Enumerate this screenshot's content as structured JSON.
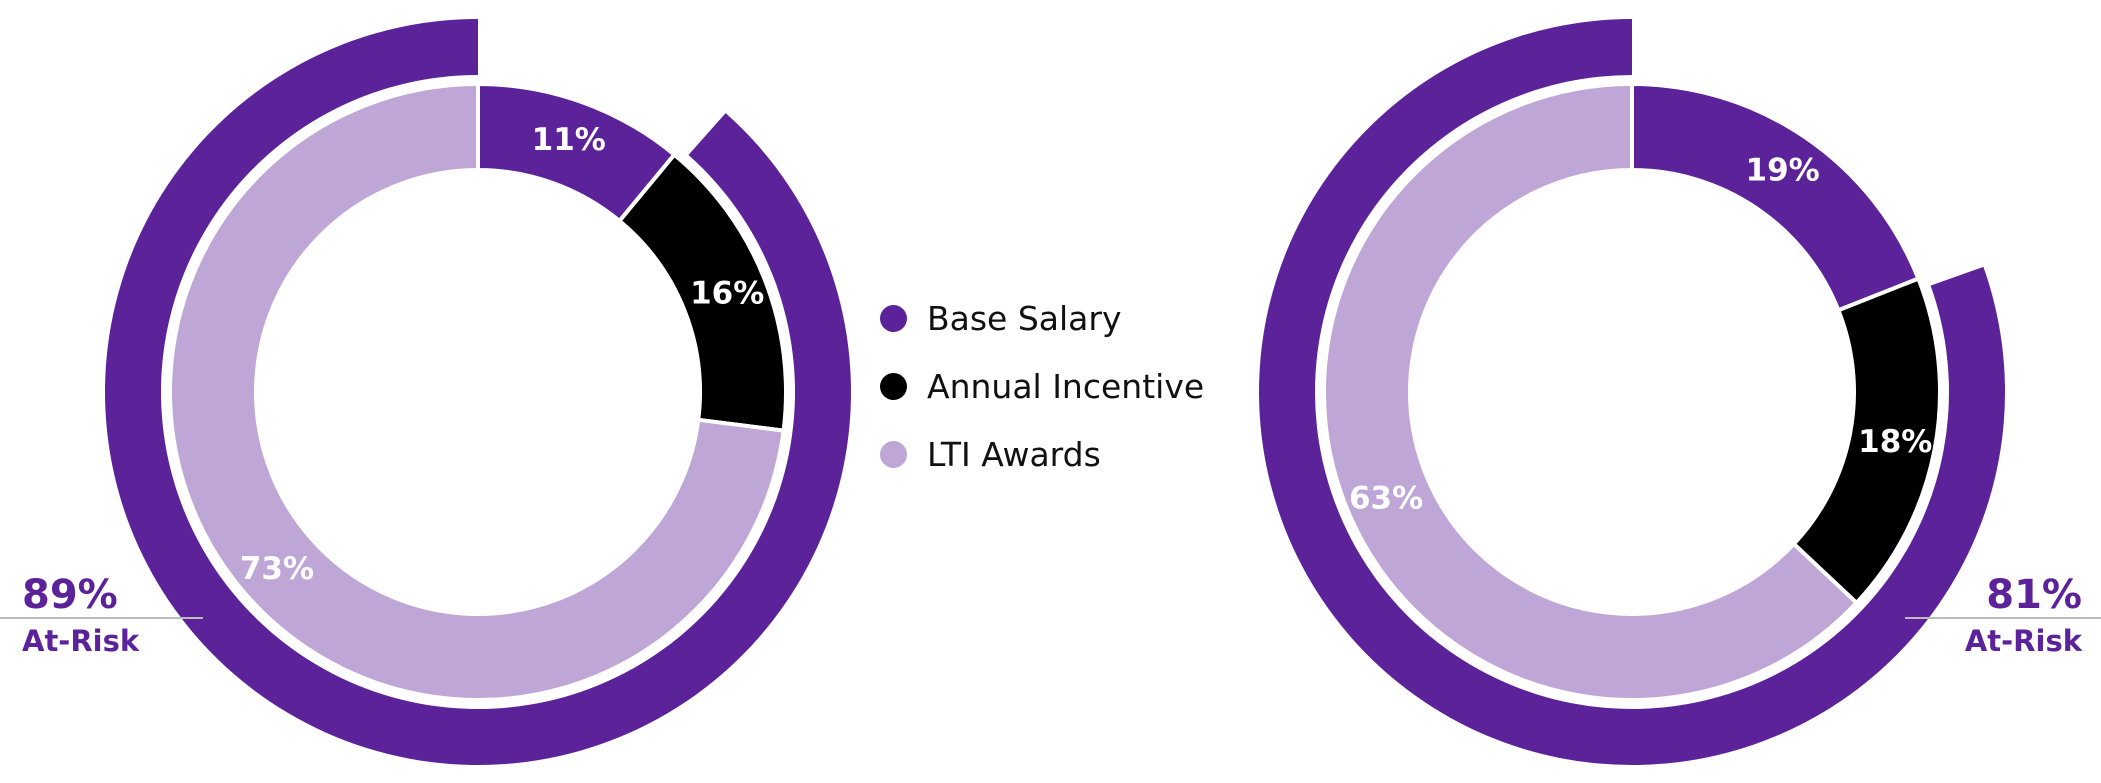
{
  "colors": {
    "base": "#5b2299",
    "incentive": "#000000",
    "lti": "#bea6d7",
    "atrisk": "#5b2299",
    "atrisk_line": "#bbbbbb"
  },
  "legend": [
    {
      "label": "Base Salary",
      "color_key": "base",
      "icon": "circle-dot-icon"
    },
    {
      "label": "Annual Incentive",
      "color_key": "incentive",
      "icon": "circle-dot-icon"
    },
    {
      "label": "LTI Awards",
      "color_key": "lti",
      "icon": "circle-dot-icon"
    }
  ],
  "chart_data": [
    {
      "type": "pie",
      "variant": "donut",
      "title": "",
      "legend_position": "center",
      "slices": [
        {
          "label": "Base Salary",
          "value": 11,
          "display": "11%"
        },
        {
          "label": "Annual Incentive",
          "value": 16,
          "display": "16%"
        },
        {
          "label": "LTI Awards",
          "value": 73,
          "display": "73%"
        }
      ],
      "at_risk": {
        "value": 89,
        "display": "89%",
        "label": "At-Risk"
      }
    },
    {
      "type": "pie",
      "variant": "donut",
      "title": "",
      "legend_position": "center",
      "slices": [
        {
          "label": "Base Salary",
          "value": 19,
          "display": "19%"
        },
        {
          "label": "Annual Incentive",
          "value": 18,
          "display": "18%"
        },
        {
          "label": "LTI Awards",
          "value": 63,
          "display": "63%"
        }
      ],
      "at_risk": {
        "value": 81,
        "display": "81%",
        "label": "At-Risk"
      }
    }
  ]
}
